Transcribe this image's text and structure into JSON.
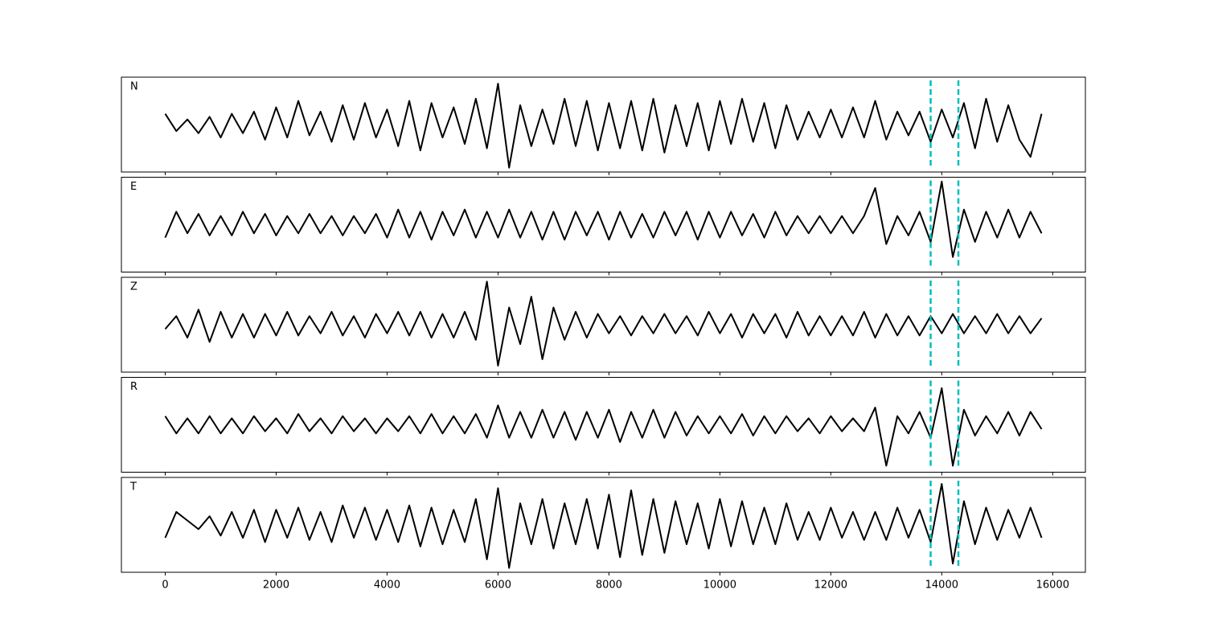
{
  "chart_data": [
    {
      "type": "line",
      "label": "N",
      "color": "#000000",
      "vlines": [
        13800,
        14300
      ],
      "vline_color": "#00bfbf",
      "xlim": [
        -790,
        16590
      ],
      "ylim": [
        -1.1,
        1.1
      ],
      "x": [
        0,
        200,
        400,
        600,
        800,
        1000,
        1200,
        1400,
        1600,
        1800,
        2000,
        2200,
        2400,
        2600,
        2800,
        3000,
        3200,
        3400,
        3600,
        3800,
        4000,
        4200,
        4400,
        4600,
        4800,
        5000,
        5200,
        5400,
        5600,
        5800,
        6000,
        6200,
        6400,
        6600,
        6800,
        7000,
        7200,
        7400,
        7600,
        7800,
        8000,
        8200,
        8400,
        8600,
        8800,
        9000,
        9200,
        9400,
        9600,
        9800,
        10000,
        10200,
        10400,
        10600,
        10800,
        11000,
        11200,
        11400,
        11600,
        11800,
        12000,
        12200,
        12400,
        12600,
        12800,
        13000,
        13200,
        13400,
        13600,
        13800,
        14000,
        14200,
        14400,
        14600,
        14800,
        15000,
        15200,
        15400,
        15600,
        15800
      ],
      "values": [
        0.25,
        -0.15,
        0.12,
        -0.2,
        0.18,
        -0.3,
        0.25,
        -0.2,
        0.3,
        -0.35,
        0.4,
        -0.3,
        0.55,
        -0.25,
        0.3,
        -0.4,
        0.45,
        -0.35,
        0.5,
        -0.3,
        0.35,
        -0.5,
        0.55,
        -0.6,
        0.5,
        -0.3,
        0.4,
        -0.45,
        0.6,
        -0.55,
        0.95,
        -1.0,
        0.45,
        -0.5,
        0.35,
        -0.45,
        0.6,
        -0.5,
        0.55,
        -0.6,
        0.5,
        -0.55,
        0.55,
        -0.6,
        0.6,
        -0.65,
        0.45,
        -0.5,
        0.5,
        -0.6,
        0.55,
        -0.45,
        0.6,
        -0.4,
        0.5,
        -0.55,
        0.45,
        -0.35,
        0.3,
        -0.3,
        0.35,
        -0.3,
        0.4,
        -0.3,
        0.55,
        -0.35,
        0.3,
        -0.25,
        0.3,
        -0.4,
        0.35,
        -0.3,
        0.5,
        -0.55,
        0.6,
        -0.4,
        0.45,
        -0.35,
        -0.75,
        0.25
      ]
    },
    {
      "type": "line",
      "label": "E",
      "color": "#000000",
      "vlines": [
        13800,
        14300
      ],
      "vline_color": "#00bfbf",
      "xlim": [
        -790,
        16590
      ],
      "ylim": [
        -1.1,
        1.1
      ],
      "x": [
        0,
        200,
        400,
        600,
        800,
        1000,
        1200,
        1400,
        1600,
        1800,
        2000,
        2200,
        2400,
        2600,
        2800,
        3000,
        3200,
        3400,
        3600,
        3800,
        4000,
        4200,
        4400,
        4600,
        4800,
        5000,
        5200,
        5400,
        5600,
        5800,
        6000,
        6200,
        6400,
        6600,
        6800,
        7000,
        7200,
        7400,
        7600,
        7800,
        8000,
        8200,
        8400,
        8600,
        8800,
        9000,
        9200,
        9400,
        9600,
        9800,
        10000,
        10200,
        10400,
        10600,
        10800,
        11000,
        11200,
        11400,
        11600,
        11800,
        12000,
        12200,
        12400,
        12600,
        12800,
        13000,
        13200,
        13400,
        13600,
        13800,
        14000,
        14200,
        14400,
        14600,
        14800,
        15000,
        15200,
        15400,
        15600,
        15800
      ],
      "values": [
        -0.3,
        0.3,
        -0.2,
        0.25,
        -0.25,
        0.2,
        -0.25,
        0.3,
        -0.2,
        0.25,
        -0.25,
        0.2,
        -0.2,
        0.25,
        -0.2,
        0.2,
        -0.25,
        0.2,
        -0.2,
        0.25,
        -0.3,
        0.35,
        -0.3,
        0.3,
        -0.35,
        0.3,
        -0.25,
        0.35,
        -0.3,
        0.3,
        -0.3,
        0.35,
        -0.3,
        0.3,
        -0.35,
        0.3,
        -0.35,
        0.3,
        -0.25,
        0.3,
        -0.35,
        0.3,
        -0.3,
        0.25,
        -0.3,
        0.3,
        -0.25,
        0.3,
        -0.35,
        0.3,
        -0.3,
        0.3,
        -0.25,
        0.25,
        -0.3,
        0.3,
        -0.25,
        0.2,
        -0.2,
        0.2,
        -0.2,
        0.2,
        -0.2,
        0.2,
        0.85,
        -0.45,
        0.2,
        -0.25,
        0.3,
        -0.4,
        1.0,
        -0.75,
        0.35,
        -0.4,
        0.3,
        -0.3,
        0.35,
        -0.3,
        0.3,
        -0.2
      ]
    },
    {
      "type": "line",
      "label": "Z",
      "color": "#000000",
      "vlines": [
        13800,
        14300
      ],
      "vline_color": "#00bfbf",
      "xlim": [
        -790,
        16590
      ],
      "ylim": [
        -1.1,
        1.1
      ],
      "x": [
        0,
        200,
        400,
        600,
        800,
        1000,
        1200,
        1400,
        1600,
        1800,
        2000,
        2200,
        2400,
        2600,
        2800,
        3000,
        3200,
        3400,
        3600,
        3800,
        4000,
        4200,
        4400,
        4600,
        4800,
        5000,
        5200,
        5400,
        5600,
        5800,
        6000,
        6200,
        6400,
        6600,
        6800,
        7000,
        7200,
        7400,
        7600,
        7800,
        8000,
        8200,
        8400,
        8600,
        8800,
        9000,
        9200,
        9400,
        9600,
        9800,
        10000,
        10200,
        10400,
        10600,
        10800,
        11000,
        11200,
        11400,
        11600,
        11800,
        12000,
        12200,
        12400,
        12600,
        12800,
        13000,
        13200,
        13400,
        13600,
        13800,
        14000,
        14200,
        14400,
        14600,
        14800,
        15000,
        15200,
        15400,
        15600,
        15800
      ],
      "values": [
        -0.1,
        0.2,
        -0.3,
        0.35,
        -0.4,
        0.3,
        -0.3,
        0.25,
        -0.3,
        0.25,
        -0.25,
        0.3,
        -0.25,
        0.2,
        -0.2,
        0.3,
        -0.25,
        0.2,
        -0.3,
        0.25,
        -0.2,
        0.3,
        -0.25,
        0.3,
        -0.3,
        0.25,
        -0.3,
        0.3,
        -0.35,
        1.0,
        -0.95,
        0.4,
        -0.45,
        0.65,
        -0.8,
        0.4,
        -0.35,
        0.3,
        -0.3,
        0.25,
        -0.2,
        0.2,
        -0.25,
        0.2,
        -0.2,
        0.25,
        -0.2,
        0.2,
        -0.25,
        0.3,
        -0.2,
        0.25,
        -0.3,
        0.25,
        -0.2,
        0.25,
        -0.3,
        0.3,
        -0.25,
        0.2,
        -0.25,
        0.2,
        -0.25,
        0.3,
        -0.3,
        0.25,
        -0.25,
        0.2,
        -0.25,
        0.2,
        -0.2,
        0.25,
        -0.2,
        0.2,
        -0.2,
        0.25,
        -0.2,
        0.2,
        -0.2,
        0.15
      ]
    },
    {
      "type": "line",
      "label": "R",
      "color": "#000000",
      "vlines": [
        13800,
        14300
      ],
      "vline_color": "#00bfbf",
      "xlim": [
        -790,
        16590
      ],
      "ylim": [
        -1.1,
        1.1
      ],
      "x": [
        0,
        200,
        400,
        600,
        800,
        1000,
        1200,
        1400,
        1600,
        1800,
        2000,
        2200,
        2400,
        2600,
        2800,
        3000,
        3200,
        3400,
        3600,
        3800,
        4000,
        4200,
        4400,
        4600,
        4800,
        5000,
        5200,
        5400,
        5600,
        5800,
        6000,
        6200,
        6400,
        6600,
        6800,
        7000,
        7200,
        7400,
        7600,
        7800,
        8000,
        8200,
        8400,
        8600,
        8800,
        9000,
        9200,
        9400,
        9600,
        9800,
        10000,
        10200,
        10400,
        10600,
        10800,
        11000,
        11200,
        11400,
        11600,
        11800,
        12000,
        12200,
        12400,
        12600,
        12800,
        13000,
        13200,
        13400,
        13600,
        13800,
        14000,
        14200,
        14400,
        14600,
        14800,
        15000,
        15200,
        15400,
        15600,
        15800
      ],
      "values": [
        0.2,
        -0.2,
        0.15,
        -0.2,
        0.2,
        -0.2,
        0.15,
        -0.2,
        0.2,
        -0.15,
        0.15,
        -0.2,
        0.25,
        -0.15,
        0.15,
        -0.2,
        0.2,
        -0.15,
        0.15,
        -0.2,
        0.15,
        -0.15,
        0.2,
        -0.2,
        0.25,
        -0.2,
        0.2,
        -0.2,
        0.25,
        -0.3,
        0.45,
        -0.3,
        0.3,
        -0.3,
        0.35,
        -0.3,
        0.3,
        -0.35,
        0.3,
        -0.3,
        0.35,
        -0.4,
        0.3,
        -0.3,
        0.35,
        -0.3,
        0.3,
        -0.25,
        0.2,
        -0.2,
        0.2,
        -0.2,
        0.25,
        -0.25,
        0.2,
        -0.2,
        0.2,
        -0.15,
        0.15,
        -0.2,
        0.2,
        -0.15,
        0.15,
        -0.15,
        0.4,
        -0.95,
        0.2,
        -0.2,
        0.3,
        -0.3,
        0.85,
        -0.95,
        0.35,
        -0.25,
        0.2,
        -0.2,
        0.3,
        -0.25,
        0.3,
        -0.1
      ]
    },
    {
      "type": "line",
      "label": "T",
      "color": "#000000",
      "vlines": [
        13800,
        14300
      ],
      "vline_color": "#00bfbf",
      "xlim": [
        -790,
        16590
      ],
      "ylim": [
        -1.1,
        1.1
      ],
      "x": [
        0,
        200,
        400,
        600,
        800,
        1000,
        1200,
        1400,
        1600,
        1800,
        2000,
        2200,
        2400,
        2600,
        2800,
        3000,
        3200,
        3400,
        3600,
        3800,
        4000,
        4200,
        4400,
        4600,
        4800,
        5000,
        5200,
        5400,
        5600,
        5800,
        6000,
        6200,
        6400,
        6600,
        6800,
        7000,
        7200,
        7400,
        7600,
        7800,
        8000,
        8200,
        8400,
        8600,
        8800,
        9000,
        9200,
        9400,
        9600,
        9800,
        10000,
        10200,
        10400,
        10600,
        10800,
        11000,
        11200,
        11400,
        11600,
        11800,
        12000,
        12200,
        12400,
        12600,
        12800,
        13000,
        13200,
        13400,
        13600,
        13800,
        14000,
        14200,
        14400,
        14600,
        14800,
        15000,
        15200,
        15400,
        15600,
        15800
      ],
      "values": [
        -0.3,
        0.3,
        0.1,
        -0.1,
        0.2,
        -0.25,
        0.3,
        -0.3,
        0.35,
        -0.4,
        0.35,
        -0.3,
        0.4,
        -0.35,
        0.3,
        -0.4,
        0.45,
        -0.3,
        0.4,
        -0.35,
        0.35,
        -0.4,
        0.45,
        -0.5,
        0.4,
        -0.45,
        0.35,
        -0.4,
        0.6,
        -0.8,
        0.85,
        -1.0,
        0.5,
        -0.45,
        0.6,
        -0.55,
        0.5,
        -0.45,
        0.6,
        -0.55,
        0.7,
        -0.75,
        0.8,
        -0.7,
        0.6,
        -0.65,
        0.55,
        -0.45,
        0.5,
        -0.55,
        0.6,
        -0.5,
        0.55,
        -0.45,
        0.4,
        -0.45,
        0.5,
        -0.35,
        0.3,
        -0.35,
        0.4,
        -0.3,
        0.3,
        -0.35,
        0.3,
        -0.35,
        0.4,
        -0.3,
        0.35,
        -0.4,
        0.95,
        -0.9,
        0.55,
        -0.45,
        0.4,
        -0.35,
        0.35,
        -0.3,
        0.4,
        -0.3
      ],
      "xticks": [
        0,
        2000,
        4000,
        6000,
        8000,
        10000,
        12000,
        14000,
        16000
      ]
    }
  ]
}
